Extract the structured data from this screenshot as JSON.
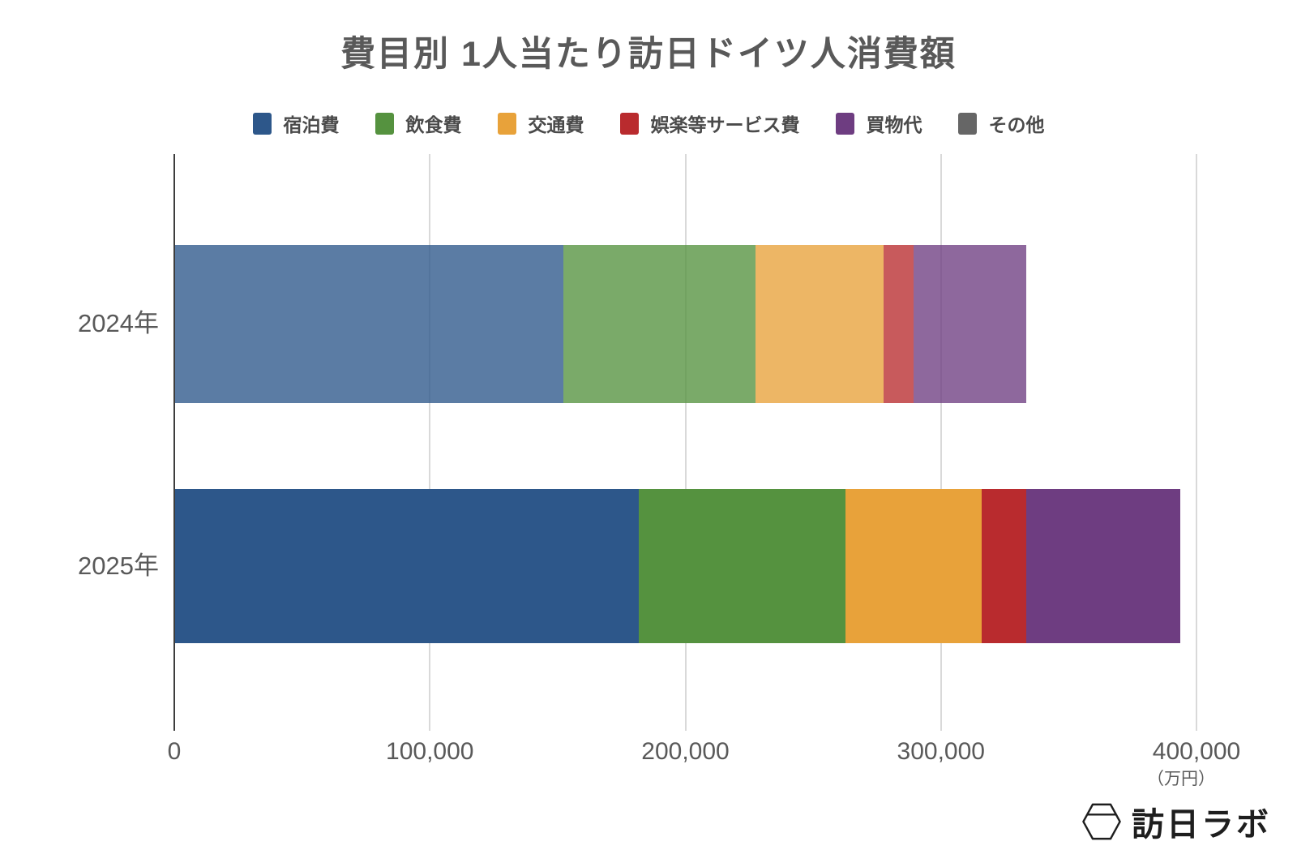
{
  "chart_data": {
    "type": "bar",
    "orientation": "horizontal",
    "stacked": true,
    "title": "費目別 1人当たり訪日ドイツ人消費額",
    "categories": [
      "2024年",
      "2025年"
    ],
    "series": [
      {
        "key": "accommodation",
        "name": "宿泊費",
        "values": [
          151900,
          181400
        ]
      },
      {
        "key": "food-drink",
        "name": "飲食費",
        "values": [
          75200,
          80900
        ]
      },
      {
        "key": "transport",
        "name": "交通費",
        "values": [
          50100,
          53300
        ]
      },
      {
        "key": "entertainment-services",
        "name": "娯楽等サービス費",
        "values": [
          11700,
          17400
        ]
      },
      {
        "key": "shopping",
        "name": "買物代",
        "values": [
          44100,
          60300
        ]
      },
      {
        "key": "other",
        "name": "その他",
        "values": [
          0,
          0
        ]
      }
    ],
    "totals": [
      333000,
      393300
    ],
    "xlim": [
      0,
      400000
    ],
    "x_ticks": [
      {
        "value": 0,
        "label": "0"
      },
      {
        "value": 100000,
        "label": "100,000"
      },
      {
        "value": 200000,
        "label": "200,000"
      },
      {
        "value": 300000,
        "label": "300,000"
      },
      {
        "value": 400000,
        "label": "400,000"
      }
    ],
    "x_unit_label": "（万円）",
    "grid": true,
    "legend_position": "top",
    "colors": {
      "palette": [
        "#2d578a",
        "#55923f",
        "#e8a23a",
        "#b92b2e",
        "#6e3d81",
        "#666666"
      ],
      "row_opacity": [
        0.78,
        1.0
      ]
    }
  },
  "styles": {
    "title_color": "#595959",
    "axis_label_color": "#595959",
    "legend_label_color": "#4a4a4a",
    "gridline_color": "#d9d9d9",
    "axis_line_color": "#3d3d3d",
    "background": "#ffffff"
  },
  "branding": {
    "logo_text": "訪日ラボ",
    "logo_icon": "hexagon-gem-icon",
    "logo_color": "#1e1e1e"
  }
}
